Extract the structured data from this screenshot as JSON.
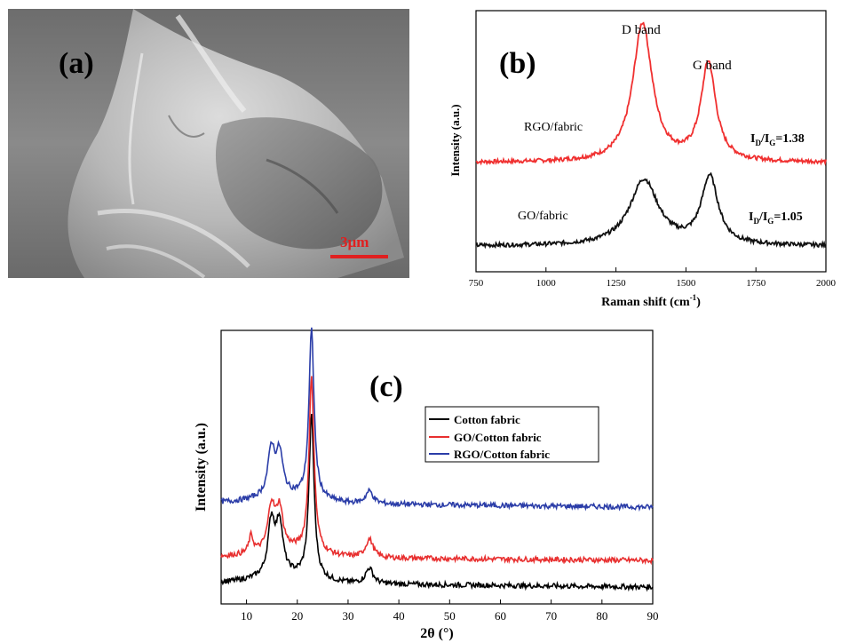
{
  "panels": {
    "a": {
      "label": "(a)",
      "scale_bar_text": "3µm",
      "scale_bar_color": "#e02020"
    }
  },
  "chart_data": [
    {
      "id": "b",
      "type": "line",
      "panel_label": "(b)",
      "title": "",
      "xlabel": "Raman shift (cm",
      "xlabel_sup": "-1",
      "xlabel_end": ")",
      "ylabel": "Intensity (a.u.)",
      "xlim": [
        750,
        2000
      ],
      "x_ticks": [
        750,
        1000,
        1250,
        1500,
        1750,
        2000
      ],
      "y_ticks_shown": false,
      "grid": false,
      "peak_labels": [
        "D band",
        "G band"
      ],
      "series": [
        {
          "name": "RGO/fabric",
          "color": "#f03030",
          "ratio_text": "I",
          "ratio_sub1": "D",
          "ratio_mid": "/I",
          "ratio_sub2": "G",
          "ratio_value": "=1.38",
          "baseline": 0.65,
          "peaks": [
            {
              "center": 1345,
              "height": 4.1,
              "width": 42
            },
            {
              "center": 1580,
              "height": 2.9,
              "width": 32
            }
          ]
        },
        {
          "name": "GO/fabric",
          "color": "#111111",
          "ratio_text": "I",
          "ratio_sub1": "D",
          "ratio_mid": "/I",
          "ratio_sub2": "G",
          "ratio_value": "=1.05",
          "baseline": 0.0,
          "peaks": [
            {
              "center": 1350,
              "height": 1.95,
              "width": 62
            },
            {
              "center": 1585,
              "height": 2.0,
              "width": 36
            }
          ]
        }
      ]
    },
    {
      "id": "c",
      "type": "line",
      "panel_label": "(c)",
      "title": "",
      "xlabel": "2θ (°)",
      "ylabel": "Intensity (a.u.)",
      "xlim": [
        5,
        90
      ],
      "x_ticks": [
        10,
        20,
        30,
        40,
        50,
        60,
        70,
        80,
        90
      ],
      "y_ticks_shown": false,
      "grid": false,
      "legend_position": "upper-right",
      "series": [
        {
          "name": "Cotton fabric",
          "color": "#000000",
          "start_level": 1.0,
          "end_level": 0.0,
          "peaks": [
            {
              "center": 14.9,
              "height": 1.9,
              "width": 0.8
            },
            {
              "center": 16.5,
              "height": 1.8,
              "width": 0.8
            },
            {
              "center": 22.8,
              "height": 5.7,
              "width": 0.6
            },
            {
              "center": 34.2,
              "height": 0.55,
              "width": 0.9
            }
          ]
        },
        {
          "name": "GO/Cotton fabric",
          "color": "#e83030",
          "start_level": 1.0,
          "end_level": 0.0,
          "peaks": [
            {
              "center": 10.9,
              "height": 0.6,
              "width": 0.5
            },
            {
              "center": 14.9,
              "height": 1.55,
              "width": 0.8
            },
            {
              "center": 16.5,
              "height": 1.4,
              "width": 0.8
            },
            {
              "center": 22.8,
              "height": 6.1,
              "width": 0.6
            },
            {
              "center": 34.2,
              "height": 0.65,
              "width": 0.9
            }
          ]
        },
        {
          "name": "RGO/Cotton fabric",
          "color": "#2b3da8",
          "start_level": 0.7,
          "end_level": 0.0,
          "peaks": [
            {
              "center": 14.9,
              "height": 1.65,
              "width": 0.8
            },
            {
              "center": 16.5,
              "height": 1.45,
              "width": 0.8
            },
            {
              "center": 22.8,
              "height": 5.9,
              "width": 0.6
            },
            {
              "center": 34.2,
              "height": 0.45,
              "width": 0.9
            }
          ]
        }
      ]
    }
  ]
}
